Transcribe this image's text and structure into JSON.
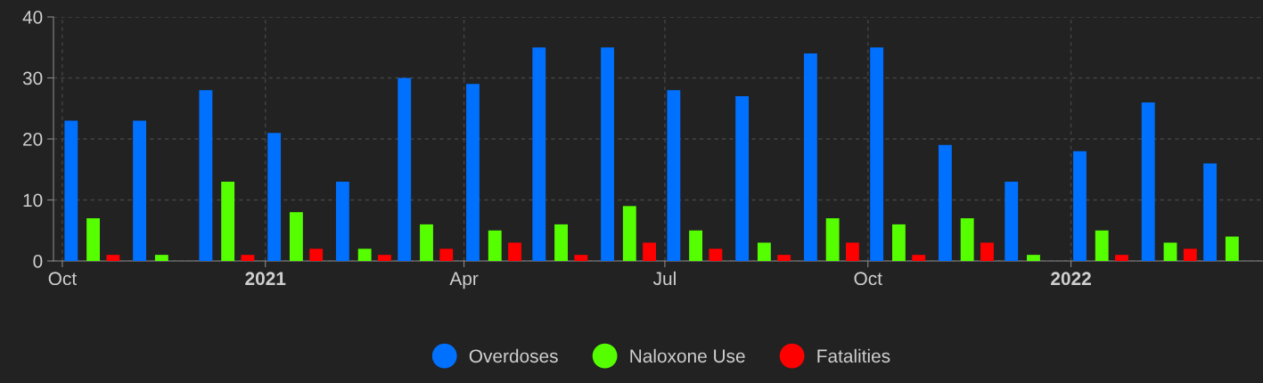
{
  "chart_data": {
    "type": "bar",
    "series": [
      {
        "name": "Overdoses",
        "color": "#0070ff",
        "x": [
          "2020-10-05",
          "2020-11-05",
          "2020-12-05",
          "2021-01-05",
          "2021-02-05",
          "2021-03-05",
          "2021-04-05",
          "2021-05-05",
          "2021-06-05",
          "2021-07-05",
          "2021-08-05",
          "2021-09-05",
          "2021-10-05",
          "2021-11-05",
          "2021-12-05",
          "2022-01-05",
          "2022-02-05",
          "2022-03-05"
        ],
        "values": [
          23,
          23,
          28,
          21,
          13,
          30,
          29,
          35,
          35,
          28,
          27,
          34,
          35,
          19,
          13,
          18,
          26,
          16
        ]
      },
      {
        "name": "Naloxone Use",
        "color": "#55ff00",
        "x": [
          "2020-10-15",
          "2020-11-15",
          "2020-12-15",
          "2021-01-15",
          "2021-02-15",
          "2021-03-15",
          "2021-04-15",
          "2021-05-15",
          "2021-06-15",
          "2021-07-15",
          "2021-08-15",
          "2021-09-15",
          "2021-10-15",
          "2021-11-15",
          "2021-12-15",
          "2022-01-15",
          "2022-02-15",
          "2022-03-15"
        ],
        "values": [
          7,
          1,
          13,
          8,
          2,
          6,
          5,
          6,
          9,
          5,
          3,
          7,
          6,
          7,
          1,
          5,
          3,
          4
        ]
      },
      {
        "name": "Fatalities",
        "color": "#ff0000",
        "x": [
          "2020-10-24",
          "2020-11-24",
          "2020-12-24",
          "2021-01-24",
          "2021-02-24",
          "2021-03-24",
          "2021-04-24",
          "2021-05-24",
          "2021-06-24",
          "2021-07-24",
          "2021-08-24",
          "2021-09-24",
          "2021-10-24",
          "2021-11-24",
          "2021-12-24",
          "2022-01-24",
          "2022-02-24",
          "2022-03-24"
        ],
        "values": [
          1,
          0,
          1,
          2,
          1,
          2,
          3,
          1,
          3,
          2,
          1,
          3,
          1,
          3,
          0,
          1,
          2,
          0
        ]
      }
    ],
    "xlim": [
      "2020-09-27",
      "2022-03-29"
    ],
    "xticks": [
      {
        "value": "2020-10",
        "label": "Oct"
      },
      {
        "value": "2021-01",
        "label": "2021"
      },
      {
        "value": "2021-04",
        "label": "Apr"
      },
      {
        "value": "2021-07",
        "label": "Jul"
      },
      {
        "value": "2021-10",
        "label": "Oct"
      },
      {
        "value": "2022-01",
        "label": "2022"
      }
    ],
    "ylim": [
      0,
      40
    ],
    "yticks": [
      0,
      10,
      20,
      30,
      40
    ],
    "grid": true,
    "legend": "bottom"
  }
}
